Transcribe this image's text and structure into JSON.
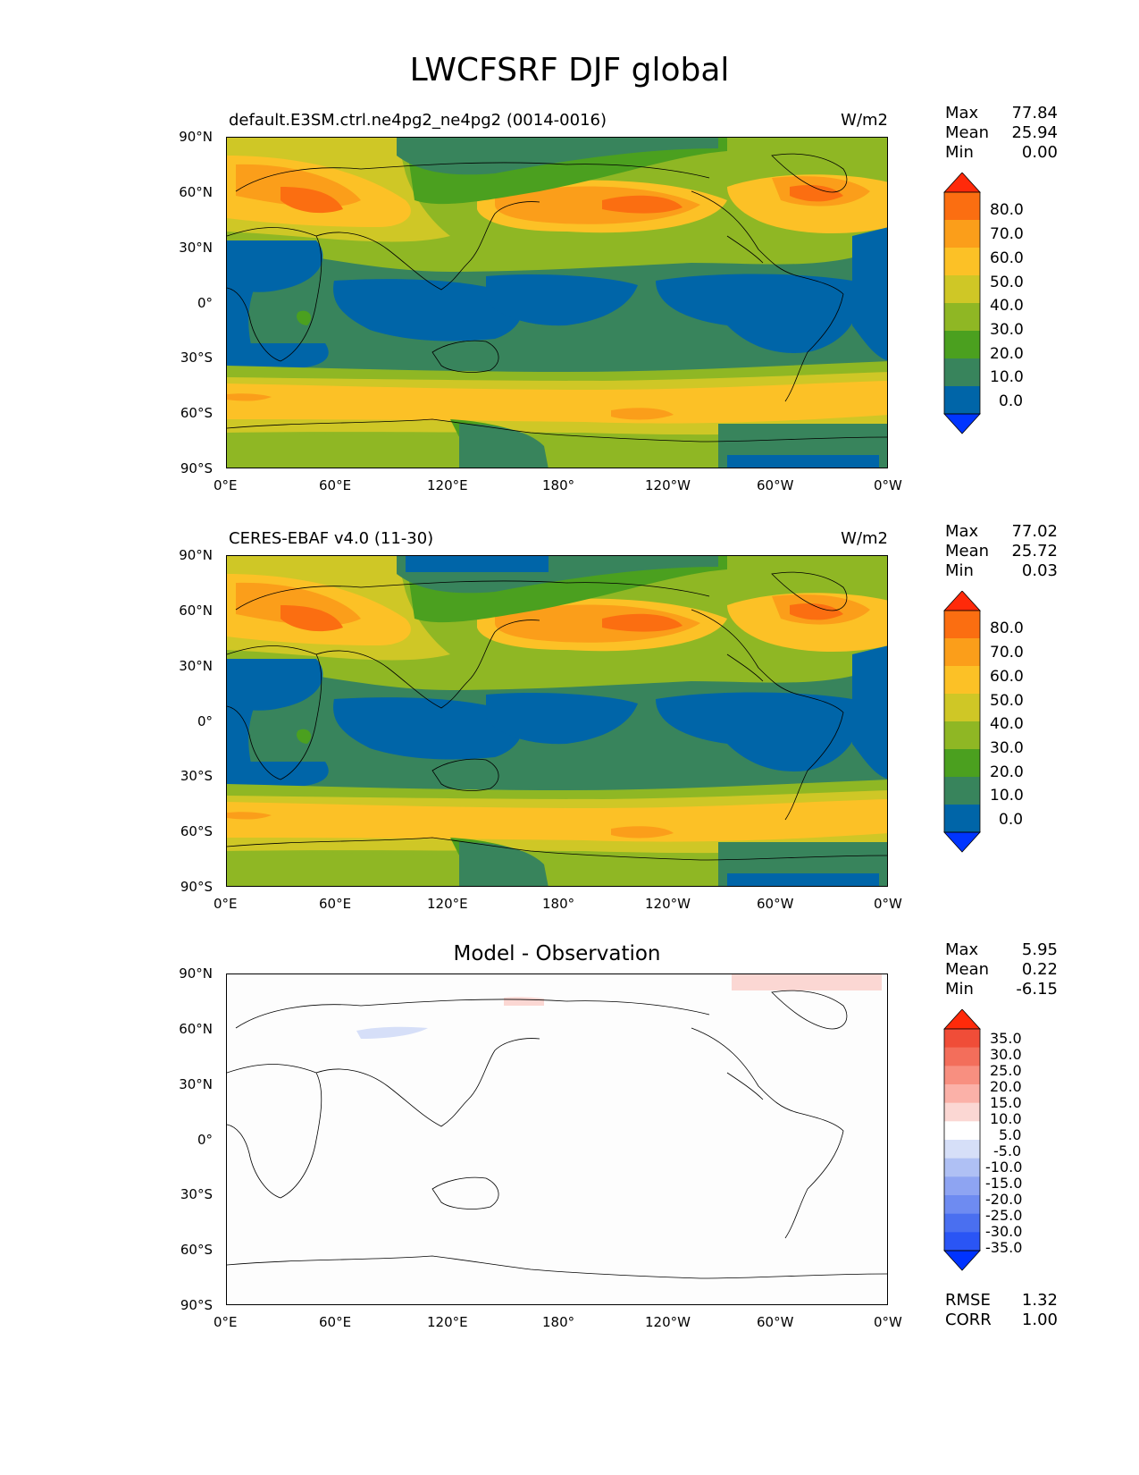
{
  "figure_title": "LWCFSRF DJF global",
  "units": "W/m2",
  "panels": [
    {
      "id": "test",
      "left_title": "default.E3SM.ctrl.ne4pg2_ne4pg2 (0014-0016)",
      "right_title": "W/m2",
      "center_title": "",
      "stats": [
        {
          "label": "Max",
          "value": "77.84"
        },
        {
          "label": "Mean",
          "value": "25.94"
        },
        {
          "label": "Min",
          "value": "0.00"
        }
      ],
      "colorbar_labels": [
        "80.0",
        "70.0",
        "60.0",
        "50.0",
        "40.0",
        "30.0",
        "20.0",
        "10.0",
        "0.0"
      ]
    },
    {
      "id": "reference",
      "left_title": "CERES-EBAF v4.0 (11-30)",
      "right_title": "W/m2",
      "center_title": "",
      "stats": [
        {
          "label": "Max",
          "value": "77.02"
        },
        {
          "label": "Mean",
          "value": "25.72"
        },
        {
          "label": "Min",
          "value": "0.03"
        }
      ],
      "colorbar_labels": [
        "80.0",
        "70.0",
        "60.0",
        "50.0",
        "40.0",
        "30.0",
        "20.0",
        "10.0",
        "0.0"
      ]
    },
    {
      "id": "difference",
      "left_title": "",
      "right_title": "",
      "center_title": "Model - Observation",
      "stats": [
        {
          "label": "Max",
          "value": "5.95"
        },
        {
          "label": "Mean",
          "value": "0.22"
        },
        {
          "label": "Min",
          "value": "-6.15"
        }
      ],
      "colorbar_labels": [
        "35.0",
        "30.0",
        "25.0",
        "20.0",
        "15.0",
        "10.0",
        "5.0",
        "-5.0",
        "-10.0",
        "-15.0",
        "-20.0",
        "-25.0",
        "-30.0",
        "-35.0"
      ],
      "metrics": [
        {
          "label": "RMSE",
          "value": "1.32"
        },
        {
          "label": "CORR",
          "value": "1.00"
        }
      ]
    }
  ],
  "axes": {
    "x_ticks": [
      "0°E",
      "60°E",
      "120°E",
      "180°",
      "120°W",
      "60°W",
      "0°W"
    ],
    "y_ticks": [
      "90°N",
      "60°N",
      "30°N",
      "0°",
      "30°S",
      "60°S",
      "90°S"
    ]
  },
  "colors": {
    "field_levels": [
      "#0035ff",
      "#0065a8",
      "#38845c",
      "#4ba01f",
      "#8fb724",
      "#cfc726",
      "#fcc126",
      "#fb9e1a",
      "#fb6e11",
      "#ff2a0a"
    ],
    "diff_levels": [
      "#0033ff",
      "#2a55f5",
      "#4a6ff0",
      "#6e8bf1",
      "#8ea4f2",
      "#afc0f4",
      "#d6dff8",
      "#ffffff",
      "#fbd7d3",
      "#fbb1a8",
      "#f88f80",
      "#f36e5b",
      "#f04d38",
      "#ff2a0a"
    ]
  },
  "chart_data": [
    {
      "type": "heatmap",
      "title": "default.E3SM.ctrl.ne4pg2_ne4pg2 (0014-0016)",
      "units": "W/m2",
      "x": "longitude",
      "xlim": [
        0,
        360
      ],
      "y": "latitude",
      "ylim": [
        -90,
        90
      ],
      "levels": [
        0,
        10,
        20,
        30,
        40,
        50,
        60,
        70,
        80
      ],
      "max": 77.84,
      "mean": 25.94,
      "min": 0.0
    },
    {
      "type": "heatmap",
      "title": "CERES-EBAF v4.0 (11-30)",
      "units": "W/m2",
      "x": "longitude",
      "xlim": [
        0,
        360
      ],
      "y": "latitude",
      "ylim": [
        -90,
        90
      ],
      "levels": [
        0,
        10,
        20,
        30,
        40,
        50,
        60,
        70,
        80
      ],
      "max": 77.02,
      "mean": 25.72,
      "min": 0.03
    },
    {
      "type": "heatmap",
      "title": "Model - Observation",
      "x": "longitude",
      "xlim": [
        0,
        360
      ],
      "y": "latitude",
      "ylim": [
        -90,
        90
      ],
      "levels": [
        -35,
        -30,
        -25,
        -20,
        -15,
        -10,
        -5,
        5,
        10,
        15,
        20,
        25,
        30,
        35
      ],
      "max": 5.95,
      "mean": 0.22,
      "min": -6.15,
      "rmse": 1.32,
      "corr": 1.0
    }
  ]
}
